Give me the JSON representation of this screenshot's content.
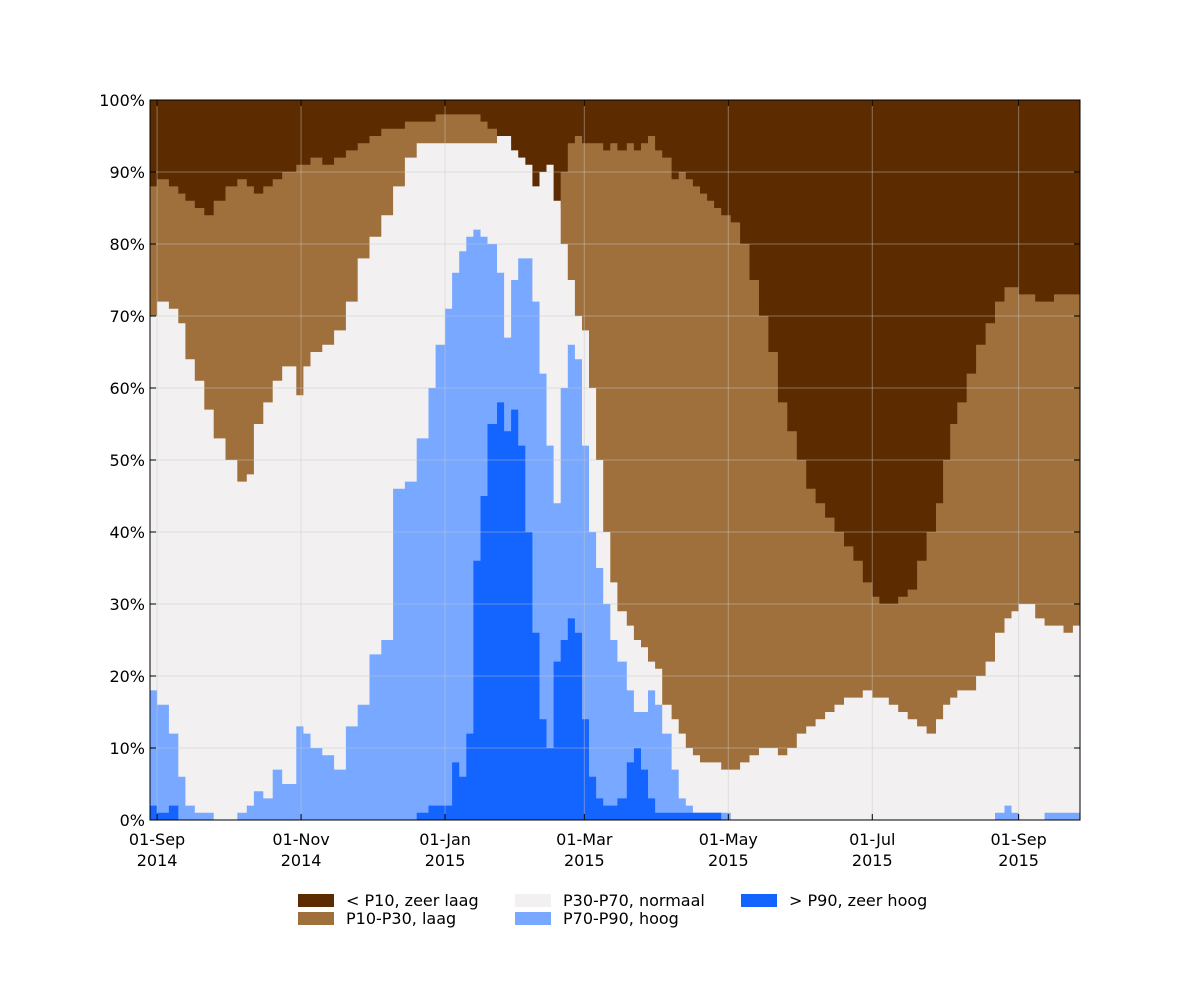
{
  "chart_data": {
    "type": "area",
    "stacked": true,
    "stack_total": 100,
    "title": "",
    "xlabel": "",
    "ylabel": "",
    "ylim": [
      0,
      100
    ],
    "xlim": [
      "2014-08-29",
      "2015-09-27"
    ],
    "grid": true,
    "legend_placement": "bottom-center",
    "y_ticks": [
      {
        "value": 0,
        "label": "0%"
      },
      {
        "value": 10,
        "label": "10%"
      },
      {
        "value": 20,
        "label": "20%"
      },
      {
        "value": 30,
        "label": "30%"
      },
      {
        "value": 40,
        "label": "40%"
      },
      {
        "value": 50,
        "label": "50%"
      },
      {
        "value": 60,
        "label": "60%"
      },
      {
        "value": 70,
        "label": "70%"
      },
      {
        "value": 80,
        "label": "80%"
      },
      {
        "value": 90,
        "label": "90%"
      },
      {
        "value": 100,
        "label": "100%"
      }
    ],
    "x_ticks": [
      {
        "date": "2014-09-01",
        "label_line1": "01-Sep",
        "label_line2": "2014"
      },
      {
        "date": "2014-11-01",
        "label_line1": "01-Nov",
        "label_line2": "2014"
      },
      {
        "date": "2015-01-01",
        "label_line1": "01-Jan",
        "label_line2": "2015"
      },
      {
        "date": "2015-03-01",
        "label_line1": "01-Mar",
        "label_line2": "2015"
      },
      {
        "date": "2015-05-01",
        "label_line1": "01-May",
        "label_line2": "2015"
      },
      {
        "date": "2015-07-01",
        "label_line1": "01-Jul",
        "label_line2": "2015"
      },
      {
        "date": "2015-09-01",
        "label_line1": "01-Sep",
        "label_line2": "2015"
      }
    ],
    "boundary_series_order": [
      "gt_p90_top",
      "p70_p90_top",
      "p30_p70_top",
      "p10_p30_top"
    ],
    "boundary_dates": [
      "2014-08-29",
      "2014-09-01",
      "2014-09-06",
      "2014-09-10",
      "2014-09-13",
      "2014-09-17",
      "2014-09-21",
      "2014-09-25",
      "2014-09-30",
      "2014-10-05",
      "2014-10-09",
      "2014-10-12",
      "2014-10-16",
      "2014-10-20",
      "2014-10-24",
      "2014-10-30",
      "2014-11-02",
      "2014-11-05",
      "2014-11-10",
      "2014-11-15",
      "2014-11-20",
      "2014-11-25",
      "2014-11-30",
      "2014-12-05",
      "2014-12-10",
      "2014-12-15",
      "2014-12-20",
      "2014-12-25",
      "2014-12-28",
      "2015-01-01",
      "2015-01-04",
      "2015-01-07",
      "2015-01-10",
      "2015-01-13",
      "2015-01-16",
      "2015-01-19",
      "2015-01-23",
      "2015-01-26",
      "2015-01-29",
      "2015-02-01",
      "2015-02-04",
      "2015-02-07",
      "2015-02-10",
      "2015-02-13",
      "2015-02-16",
      "2015-02-19",
      "2015-02-22",
      "2015-02-25",
      "2015-02-28",
      "2015-03-03",
      "2015-03-06",
      "2015-03-09",
      "2015-03-12",
      "2015-03-15",
      "2015-03-19",
      "2015-03-22",
      "2015-03-25",
      "2015-03-28",
      "2015-03-31",
      "2015-04-03",
      "2015-04-07",
      "2015-04-10",
      "2015-04-13",
      "2015-04-16",
      "2015-04-19",
      "2015-04-22",
      "2015-04-25",
      "2015-04-28",
      "2015-05-02",
      "2015-05-06",
      "2015-05-10",
      "2015-05-14",
      "2015-05-18",
      "2015-05-22",
      "2015-05-26",
      "2015-05-30",
      "2015-06-03",
      "2015-06-07",
      "2015-06-11",
      "2015-06-15",
      "2015-06-19",
      "2015-06-23",
      "2015-06-27",
      "2015-07-01",
      "2015-07-04",
      "2015-07-08",
      "2015-07-12",
      "2015-07-16",
      "2015-07-20",
      "2015-07-24",
      "2015-07-28",
      "2015-07-31",
      "2015-08-03",
      "2015-08-06",
      "2015-08-10",
      "2015-08-14",
      "2015-08-18",
      "2015-08-22",
      "2015-08-26",
      "2015-08-29",
      "2015-09-01",
      "2015-09-04",
      "2015-09-08",
      "2015-09-12",
      "2015-09-16",
      "2015-09-20",
      "2015-09-24",
      "2015-09-27"
    ],
    "gt_p90_top": [
      2,
      1,
      2,
      0,
      0,
      0,
      0,
      0,
      0,
      0,
      0,
      0,
      0,
      0,
      0,
      0,
      0,
      0,
      0,
      0,
      0,
      0,
      0,
      0,
      0,
      0,
      1,
      2,
      2,
      2,
      8,
      6,
      12,
      36,
      45,
      55,
      58,
      54,
      57,
      52,
      40,
      26,
      14,
      10,
      22,
      25,
      28,
      26,
      14,
      6,
      3,
      2,
      2,
      3,
      8,
      10,
      7,
      3,
      1,
      1,
      1,
      1,
      1,
      1,
      1,
      1,
      1,
      0,
      0,
      0,
      0,
      0,
      0,
      0,
      0,
      0,
      0,
      0,
      0,
      0,
      0,
      0,
      0,
      0,
      0,
      0,
      0,
      0,
      0,
      0,
      0,
      0,
      0,
      0,
      0,
      0,
      0,
      0,
      0,
      0,
      0,
      0,
      0,
      0,
      0,
      0,
      0,
      1
    ],
    "p70_p90_top": [
      18,
      16,
      12,
      6,
      2,
      1,
      1,
      0,
      0,
      1,
      2,
      4,
      3,
      7,
      5,
      13,
      12,
      10,
      9,
      7,
      13,
      16,
      23,
      25,
      46,
      47,
      53,
      60,
      66,
      71,
      76,
      79,
      81,
      82,
      81,
      80,
      76,
      67,
      75,
      78,
      78,
      72,
      62,
      52,
      44,
      60,
      66,
      64,
      52,
      40,
      35,
      30,
      25,
      22,
      18,
      15,
      15,
      18,
      16,
      12,
      7,
      3,
      2,
      1,
      1,
      1,
      1,
      1,
      0,
      0,
      0,
      0,
      0,
      0,
      0,
      0,
      0,
      0,
      0,
      0,
      0,
      0,
      0,
      0,
      0,
      0,
      0,
      0,
      0,
      0,
      0,
      0,
      0,
      0,
      0,
      0,
      0,
      1,
      2,
      1,
      0,
      0,
      0,
      1,
      1,
      1,
      1,
      1
    ],
    "p30_p70_top": [
      70,
      72,
      71,
      69,
      64,
      61,
      57,
      53,
      50,
      47,
      48,
      55,
      58,
      61,
      63,
      59,
      63,
      65,
      66,
      68,
      72,
      78,
      81,
      84,
      88,
      92,
      94,
      94,
      94,
      94,
      94,
      94,
      94,
      94,
      94,
      94,
      95,
      95,
      93,
      92,
      91,
      88,
      90,
      91,
      86,
      80,
      75,
      70,
      68,
      60,
      50,
      40,
      33,
      29,
      27,
      25,
      24,
      22,
      21,
      16,
      14,
      12,
      10,
      9,
      8,
      8,
      8,
      7,
      7,
      8,
      9,
      10,
      10,
      9,
      10,
      12,
      13,
      14,
      15,
      16,
      17,
      17,
      18,
      17,
      17,
      16,
      15,
      14,
      13,
      12,
      14,
      16,
      17,
      18,
      18,
      20,
      22,
      26,
      28,
      29,
      30,
      30,
      28,
      27,
      27,
      26,
      27,
      27
    ],
    "p10_p30_top": [
      88,
      89,
      88,
      87,
      86,
      85,
      84,
      86,
      88,
      89,
      88,
      87,
      88,
      89,
      90,
      91,
      91,
      92,
      91,
      92,
      93,
      94,
      95,
      96,
      96,
      97,
      97,
      97,
      98,
      98,
      98,
      98,
      98,
      98,
      97,
      96,
      95,
      94,
      93,
      92,
      90,
      88,
      86,
      82,
      85,
      90,
      94,
      95,
      94,
      94,
      94,
      93,
      94,
      93,
      94,
      93,
      94,
      95,
      93,
      92,
      89,
      90,
      89,
      88,
      87,
      86,
      85,
      84,
      83,
      80,
      75,
      70,
      65,
      58,
      54,
      50,
      46,
      44,
      42,
      40,
      38,
      36,
      33,
      31,
      30,
      30,
      31,
      32,
      36,
      40,
      44,
      50,
      55,
      58,
      62,
      66,
      69,
      72,
      74,
      74,
      73,
      73,
      72,
      72,
      73,
      73,
      73,
      73
    ]
  },
  "legend": {
    "items": [
      {
        "label": "< P10, zeer laag",
        "color": "#5c2c00"
      },
      {
        "label": "P10-P30, laag",
        "color": "#a0703c"
      },
      {
        "label": "P30-P70, normaal",
        "color": "#f2f0f0"
      },
      {
        "label": "P70-P90, hoog",
        "color": "#78a8ff"
      },
      {
        "label": "> P90, zeer hoog",
        "color": "#1464ff"
      }
    ]
  },
  "colors": {
    "lt_p10": "#5c2c00",
    "p10_p30": "#a0703c",
    "p30_p70": "#f2f0f0",
    "p70_p90": "#78a8ff",
    "gt_p90": "#1464ff",
    "grid": "#c8c8c8",
    "axis": "#000000"
  }
}
